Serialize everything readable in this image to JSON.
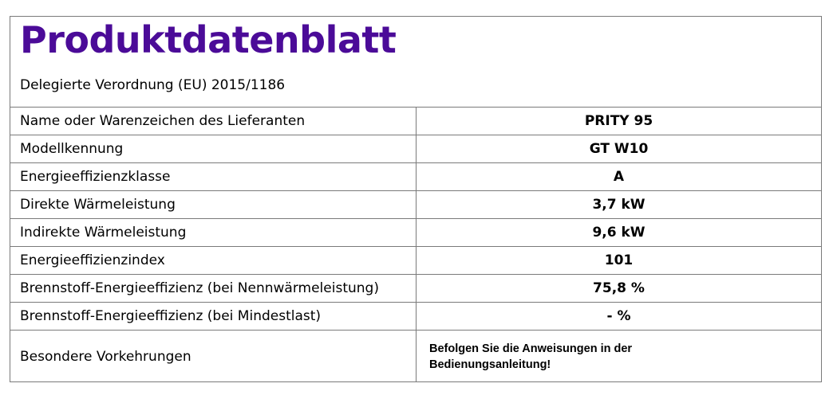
{
  "document": {
    "title": "Produktdatenblatt",
    "subtitle": "Delegierte Verordnung (EU) 2015/1186",
    "title_color": "#4b0b98"
  },
  "table": {
    "rows": [
      {
        "label": "Name oder Warenzeichen des Lieferanten",
        "value": "PRITY 95"
      },
      {
        "label": "Modellkennung",
        "value": "GT W10"
      },
      {
        "label": "Energieeffizienzklasse",
        "value": "A"
      },
      {
        "label": "Direkte Wärmeleistung",
        "value": "3,7 kW"
      },
      {
        "label": "Indirekte Wärmeleistung",
        "value": "9,6 kW"
      },
      {
        "label": "Energieeffizienzindex",
        "value": "101"
      },
      {
        "label": "Brennstoff-Energieeffizienz (bei Nennwärmeleistung)",
        "value": "75,8 %"
      },
      {
        "label": "Brennstoff-Energieeffizienz (bei Mindestlast)",
        "value": "- %"
      },
      {
        "label": "Besondere Vorkehrungen",
        "value": "Befolgen Sie die Anweisungen in der Bedienungsanleitung!"
      }
    ]
  }
}
